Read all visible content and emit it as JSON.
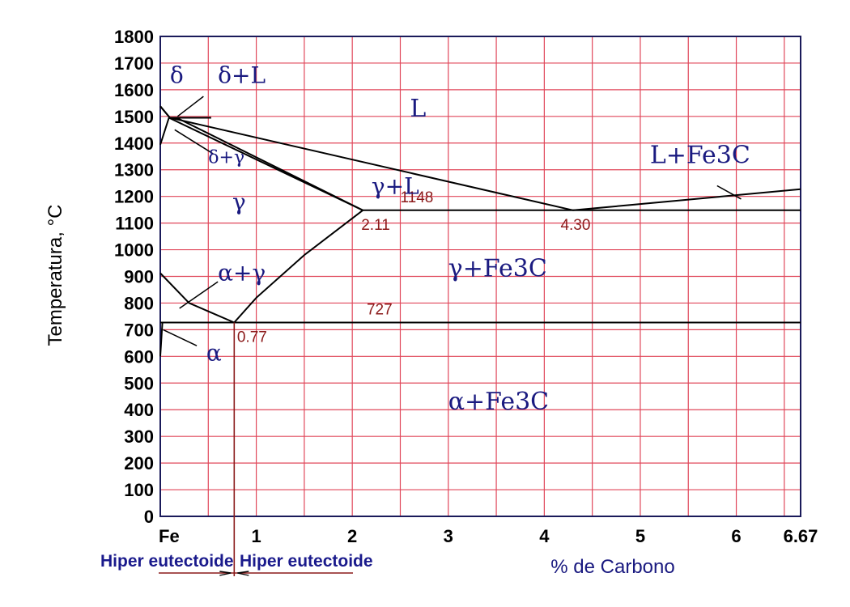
{
  "chart_data": {
    "type": "line",
    "ylabel": "Temperatura, °C",
    "xlabel": "% de Carbono",
    "xlim": [
      0,
      6.67
    ],
    "ylim": [
      0,
      1800
    ],
    "yticks": [
      0,
      100,
      200,
      300,
      400,
      500,
      600,
      700,
      800,
      900,
      1000,
      1100,
      1200,
      1300,
      1400,
      1500,
      1600,
      1700,
      1800
    ],
    "ytick_labels": [
      "0",
      "100",
      "200",
      "300",
      "400",
      "500",
      "600",
      "700",
      "800",
      "900",
      "1000",
      "1100",
      "1200",
      "1300",
      "1400",
      "1500",
      "1600",
      "1700",
      "1800"
    ],
    "xticks": [
      0,
      1,
      2,
      3,
      4,
      5,
      6,
      6.67
    ],
    "xtick_labels": [
      "Fe",
      "1",
      "2",
      "3",
      "4",
      "5",
      "6",
      "6.67"
    ],
    "grid": true,
    "grid_color": "#e0475a",
    "line_color": "#000000",
    "region_color": "#1a1a80",
    "point_label_color": "#8b1a1a",
    "series": [
      {
        "values": [
          [
            0,
            1538
          ],
          [
            0.1,
            1495
          ],
          [
            4.3,
            1148
          ],
          [
            6.67,
            1227
          ]
        ]
      },
      {
        "values": [
          [
            0,
            1538
          ],
          [
            0.1,
            1495
          ]
        ]
      },
      {
        "values": [
          [
            0.09,
            1495
          ],
          [
            0.53,
            1495
          ]
        ]
      },
      {
        "values": [
          [
            0,
            1394
          ],
          [
            0.09,
            1495
          ],
          [
            2.11,
            1148
          ]
        ]
      },
      {
        "values": [
          [
            0.17,
            1495
          ],
          [
            2.11,
            1148
          ]
        ]
      },
      {
        "values": [
          [
            2.11,
            1148
          ],
          [
            6.67,
            1148
          ]
        ]
      },
      {
        "values": [
          [
            2.11,
            1148
          ],
          [
            1.5,
            980
          ],
          [
            1.0,
            820
          ],
          [
            0.77,
            727
          ]
        ]
      },
      {
        "values": [
          [
            0,
            912
          ],
          [
            0.3,
            800
          ],
          [
            0.77,
            727
          ]
        ]
      },
      {
        "values": [
          [
            0,
            727
          ],
          [
            6.67,
            727
          ]
        ]
      },
      {
        "values": [
          [
            0,
            727
          ],
          [
            0.022,
            727
          ],
          [
            0,
            600
          ]
        ]
      }
    ],
    "points": [
      {
        "label": "1148",
        "x": 2.11,
        "y": 1148
      },
      {
        "label": "2.11",
        "x": 2.11,
        "y": 1148
      },
      {
        "label": "4.30",
        "x": 4.3,
        "y": 1148
      },
      {
        "label": "727",
        "x": 0.77,
        "y": 727
      },
      {
        "label": "0.77",
        "x": 0.77,
        "y": 727
      }
    ],
    "regions": [
      "L",
      "δ",
      "δ+L",
      "δ+γ",
      "γ",
      "γ+L",
      "L+Fe3C",
      "γ+Fe3C",
      "α+γ",
      "α",
      "α+Fe3C"
    ],
    "annotations": {
      "hiper_left": "Hiper eutectoide",
      "hiper_right": "Hiper eutectoide"
    }
  }
}
